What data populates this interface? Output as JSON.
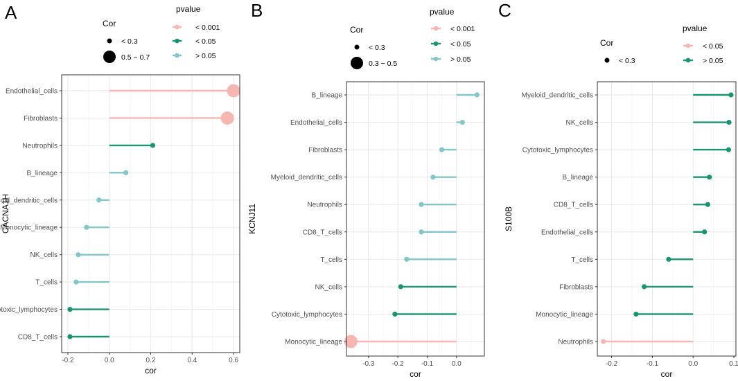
{
  "colors": {
    "p_lt_0_001": "#f8b6b2",
    "p_lt_0_05": "#1a9470",
    "p_gt_0_05": "#83c6c8",
    "grid": "#ebebeb",
    "panel_border": "#333333"
  },
  "chart_data": [
    {
      "panel_label": "A",
      "type": "lollipop",
      "gene": "CACNA1H",
      "xlabel": "cor",
      "ylabel": "CACNA1H",
      "xlim": [
        -0.23,
        0.63
      ],
      "xticks": [
        -0.2,
        0.0,
        0.2,
        0.4,
        0.6
      ],
      "xtick_labels": [
        "-0.2",
        "0.0",
        "0.2",
        "0.4",
        "0.6"
      ],
      "legend": {
        "cor_title": "Cor",
        "cor_items": [
          {
            "label": "< 0.3",
            "size": "small"
          },
          {
            "label": "0.5 − 0.7",
            "size": "large"
          }
        ],
        "pvalue_title": "pvalue",
        "pvalue_items": [
          {
            "label": "< 0.001",
            "class": "p_lt_0_001"
          },
          {
            "label": "< 0.05",
            "class": "p_lt_0_05"
          },
          {
            "label": "> 0.05",
            "class": "p_gt_0_05"
          }
        ]
      },
      "points": [
        {
          "cell": "Endothelial_cells",
          "cor": 0.6,
          "p": "p_lt_0_001",
          "size": "large"
        },
        {
          "cell": "Fibroblasts",
          "cor": 0.57,
          "p": "p_lt_0_001",
          "size": "large"
        },
        {
          "cell": "Neutrophils",
          "cor": 0.21,
          "p": "p_lt_0_05",
          "size": "small"
        },
        {
          "cell": "B_lineage",
          "cor": 0.08,
          "p": "p_gt_0_05",
          "size": "small"
        },
        {
          "cell": "Myeloid_dendritic_cells",
          "cor": -0.05,
          "p": "p_gt_0_05",
          "size": "small"
        },
        {
          "cell": "Monocytic_lineage",
          "cor": -0.11,
          "p": "p_gt_0_05",
          "size": "small"
        },
        {
          "cell": "NK_cells",
          "cor": -0.15,
          "p": "p_gt_0_05",
          "size": "small"
        },
        {
          "cell": "T_cells",
          "cor": -0.16,
          "p": "p_gt_0_05",
          "size": "small"
        },
        {
          "cell": "Cytotoxic_lymphocytes",
          "cor": -0.19,
          "p": "p_lt_0_05",
          "size": "small"
        },
        {
          "cell": "CD8_T_cells",
          "cor": -0.19,
          "p": "p_lt_0_05",
          "size": "small"
        }
      ]
    },
    {
      "panel_label": "B",
      "type": "lollipop",
      "gene": "KCNJ11",
      "xlabel": "cor",
      "ylabel": "KCNJ11",
      "xlim": [
        -0.375,
        0.095
      ],
      "xticks": [
        -0.3,
        -0.2,
        -0.1,
        0.0
      ],
      "xtick_labels": [
        "-0.3",
        "-0.2",
        "-0.1",
        "0.0"
      ],
      "legend": {
        "cor_title": "Cor",
        "cor_items": [
          {
            "label": "< 0.3",
            "size": "small"
          },
          {
            "label": "0.3 − 0.5",
            "size": "large"
          }
        ],
        "pvalue_title": "pvalue",
        "pvalue_items": [
          {
            "label": "< 0.001",
            "class": "p_lt_0_001"
          },
          {
            "label": "< 0.05",
            "class": "p_lt_0_05"
          },
          {
            "label": "> 0.05",
            "class": "p_gt_0_05"
          }
        ]
      },
      "points": [
        {
          "cell": "B_lineage",
          "cor": 0.07,
          "p": "p_gt_0_05",
          "size": "small"
        },
        {
          "cell": "Endothelial_cells",
          "cor": 0.02,
          "p": "p_gt_0_05",
          "size": "small"
        },
        {
          "cell": "Fibroblasts",
          "cor": -0.05,
          "p": "p_gt_0_05",
          "size": "small"
        },
        {
          "cell": "Myeloid_dendritic_cells",
          "cor": -0.08,
          "p": "p_gt_0_05",
          "size": "small"
        },
        {
          "cell": "Neutrophils",
          "cor": -0.12,
          "p": "p_gt_0_05",
          "size": "small"
        },
        {
          "cell": "CD8_T_cells",
          "cor": -0.12,
          "p": "p_gt_0_05",
          "size": "small"
        },
        {
          "cell": "T_cells",
          "cor": -0.17,
          "p": "p_gt_0_05",
          "size": "small"
        },
        {
          "cell": "NK_cells",
          "cor": -0.19,
          "p": "p_lt_0_05",
          "size": "small"
        },
        {
          "cell": "Cytotoxic_lymphocytes",
          "cor": -0.21,
          "p": "p_lt_0_05",
          "size": "small"
        },
        {
          "cell": "Monocytic_lineage",
          "cor": -0.36,
          "p": "p_lt_0_001",
          "size": "large"
        }
      ]
    },
    {
      "panel_label": "C",
      "type": "lollipop",
      "gene": "S100B",
      "xlabel": "cor",
      "ylabel": "S100B",
      "xlim": [
        -0.235,
        0.105
      ],
      "xticks": [
        -0.2,
        -0.1,
        0.0,
        0.1
      ],
      "xtick_labels": [
        "-0.2",
        "-0.1",
        "0.0",
        "0.1"
      ],
      "legend": {
        "cor_title": "Cor",
        "cor_items": [
          {
            "label": "< 0.3",
            "size": "small"
          }
        ],
        "pvalue_title": "pvalue",
        "pvalue_items": [
          {
            "label": "< 0.05",
            "class": "p_lt_0_001"
          },
          {
            "label": "> 0.05",
            "class": "p_lt_0_05"
          }
        ]
      },
      "points": [
        {
          "cell": "Myeloid_dendritic_cells",
          "cor": 0.093,
          "p": "p_lt_0_05",
          "size": "small"
        },
        {
          "cell": "NK_cells",
          "cor": 0.088,
          "p": "p_lt_0_05",
          "size": "small"
        },
        {
          "cell": "Cytotoxic_lymphocytes",
          "cor": 0.087,
          "p": "p_lt_0_05",
          "size": "small"
        },
        {
          "cell": "B_lineage",
          "cor": 0.04,
          "p": "p_lt_0_05",
          "size": "small"
        },
        {
          "cell": "CD8_T_cells",
          "cor": 0.036,
          "p": "p_lt_0_05",
          "size": "small"
        },
        {
          "cell": "Endothelial_cells",
          "cor": 0.028,
          "p": "p_lt_0_05",
          "size": "small"
        },
        {
          "cell": "T_cells",
          "cor": -0.06,
          "p": "p_lt_0_05",
          "size": "small"
        },
        {
          "cell": "Fibroblasts",
          "cor": -0.12,
          "p": "p_lt_0_05",
          "size": "small"
        },
        {
          "cell": "Monocytic_lineage",
          "cor": -0.14,
          "p": "p_lt_0_05",
          "size": "small"
        },
        {
          "cell": "Neutrophils",
          "cor": -0.22,
          "p": "p_lt_0_001",
          "size": "small"
        }
      ]
    }
  ]
}
